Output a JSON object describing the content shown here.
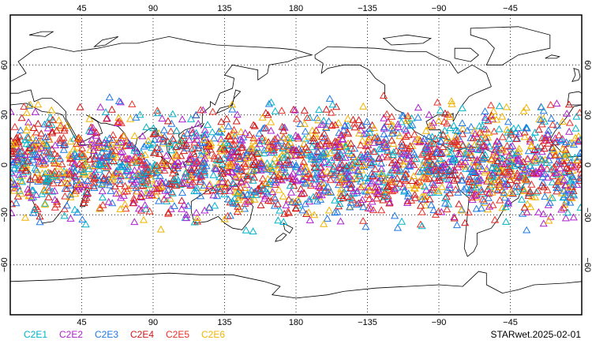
{
  "map": {
    "projection": "equirectangular",
    "center_longitude": 180,
    "lat_range": [
      -90,
      90
    ],
    "lon_range": [
      0,
      360
    ],
    "grid": "dotted",
    "top_ticks": [
      "45",
      "90",
      "135",
      "180",
      "−135",
      "−90",
      "−45"
    ],
    "bottom_ticks": [
      "45",
      "90",
      "135",
      "180",
      "−135",
      "−90",
      "−45"
    ],
    "left_ticks": [
      "60",
      "30",
      "0",
      "−30",
      "−60"
    ],
    "right_ticks": [
      "60",
      "30",
      "0",
      "−30",
      "−60"
    ],
    "marker": "open-triangle",
    "observation_lat_band": [
      -45,
      45
    ]
  },
  "legend": [
    {
      "label": "C2E1",
      "color": "#00b4c8"
    },
    {
      "label": "C2E2",
      "color": "#b020d0"
    },
    {
      "label": "C2E3",
      "color": "#1e78e6"
    },
    {
      "label": "C2E4",
      "color": "#d01818"
    },
    {
      "label": "C2E5",
      "color": "#e83028"
    },
    {
      "label": "C2E6",
      "color": "#f0b400"
    }
  ],
  "source_label": "STARwet.2025-02-01"
}
